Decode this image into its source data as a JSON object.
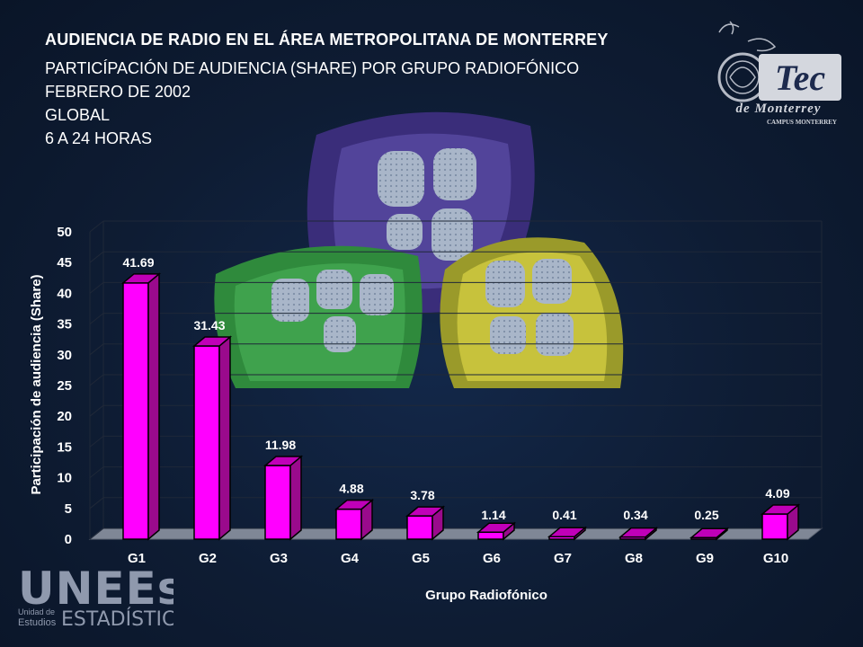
{
  "header": {
    "title": "AUDIENCIA DE RADIO EN EL ÁREA METROPOLITANA DE MONTERREY",
    "subtitle": "PARTICÍPACIÓN DE AUDIENCIA (SHARE) POR GRUPO RADIOFÓNICO",
    "period": "FEBRERO DE 2002",
    "scope": "GLOBAL",
    "hours": "6 A 24 HORAS"
  },
  "logos": {
    "tec": {
      "word": "Tec",
      "line2": "de Monterrey",
      "campus": "CAMPUS MONTERREY"
    },
    "uneest": {
      "word": "UNEEsT",
      "small1": "Unidad de",
      "small2": "Estudios",
      "big": "ESTADÍSTICOS"
    }
  },
  "colors": {
    "bar_front": "#ff00ff",
    "bar_side": "#9a0a8c",
    "bar_top": "#c000b8",
    "background": "#0e1c33",
    "text": "#ffffff"
  },
  "chart_data": {
    "type": "bar",
    "xlabel": "Grupo Radiofónico",
    "ylabel": "Participación de audiencia (Share)",
    "ylim": [
      0,
      50
    ],
    "yticks": [
      0,
      5,
      10,
      15,
      20,
      25,
      30,
      35,
      40,
      45,
      50
    ],
    "categories": [
      "G1",
      "G2",
      "G3",
      "G4",
      "G5",
      "G6",
      "G7",
      "G8",
      "G9",
      "G10"
    ],
    "values": [
      41.69,
      31.43,
      11.98,
      4.88,
      3.78,
      1.14,
      0.41,
      0.34,
      0.25,
      4.09
    ],
    "value_labels": [
      "41.69",
      "31.43",
      "11.98",
      "4.88",
      "3.78",
      "1.14",
      "0.41",
      "0.34",
      "0.25",
      "4.09"
    ],
    "grid": true,
    "legend": "none",
    "style": "3d"
  }
}
